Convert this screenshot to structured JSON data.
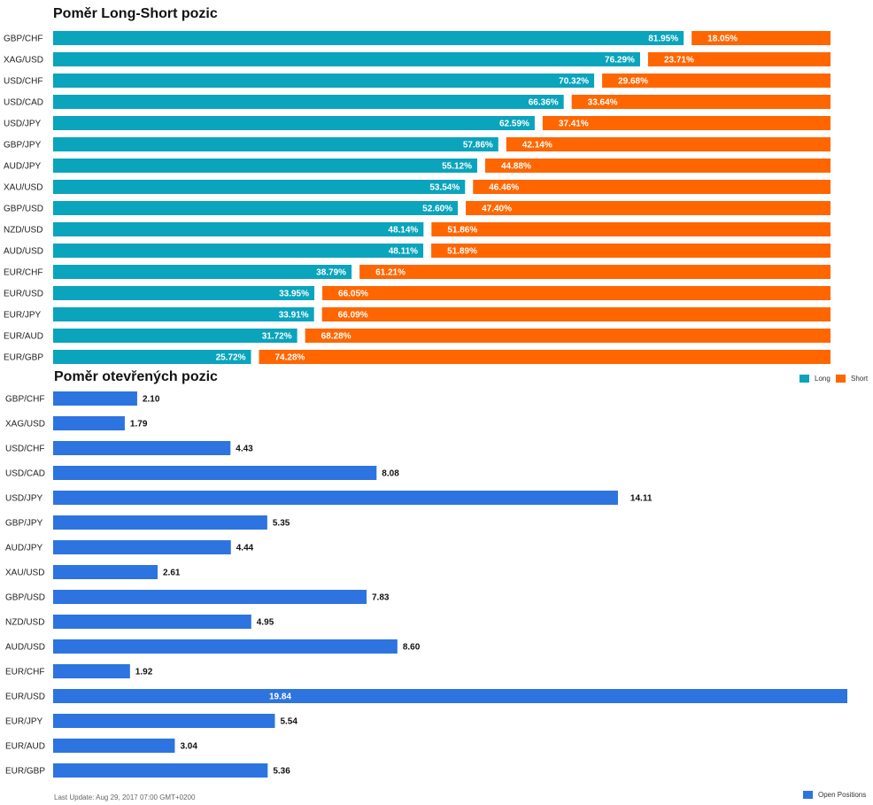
{
  "colors": {
    "long": "#0aa4bc",
    "short": "#ff6600",
    "open": "#2d74e0"
  },
  "legend": {
    "long": "Long",
    "short": "Short",
    "open": "Open Positions"
  },
  "footer": {
    "last_update": "Last Update: Aug 29, 2017 07:00 GMT+0200"
  },
  "chart_data": [
    {
      "type": "bar",
      "orientation": "horizontal",
      "stacked": true,
      "title": "Poměr Long-Short pozic",
      "categories": [
        "GBP/CHF",
        "XAG/USD",
        "USD/CHF",
        "USD/CAD",
        "USD/JPY",
        "GBP/JPY",
        "AUD/JPY",
        "XAU/USD",
        "GBP/USD",
        "NZD/USD",
        "AUD/USD",
        "EUR/CHF",
        "EUR/USD",
        "EUR/JPY",
        "EUR/AUD",
        "EUR/GBP"
      ],
      "series": [
        {
          "name": "Long",
          "values": [
            81.95,
            76.29,
            70.32,
            66.36,
            62.59,
            57.86,
            55.12,
            53.54,
            52.6,
            48.14,
            48.11,
            38.79,
            33.95,
            33.91,
            31.72,
            25.72
          ],
          "labels": [
            "81.95%",
            "76.29%",
            "70.32%",
            "66.36%",
            "62.59%",
            "57.86%",
            "55.12%",
            "53.54%",
            "52.60%",
            "48.14%",
            "48.11%",
            "38.79%",
            "33.95%",
            "33.91%",
            "31.72%",
            "25.72%"
          ]
        },
        {
          "name": "Short",
          "values": [
            18.05,
            23.71,
            29.68,
            33.64,
            37.41,
            42.14,
            44.88,
            46.46,
            47.4,
            51.86,
            51.89,
            61.21,
            66.05,
            66.09,
            68.28,
            74.28
          ],
          "labels": [
            "18.05%",
            "23.71%",
            "29.68%",
            "33.64%",
            "37.41%",
            "42.14%",
            "44.88%",
            "46.46%",
            "47.40%",
            "51.86%",
            "51.89%",
            "61.21%",
            "66.05%",
            "66.09%",
            "68.28%",
            "74.28%"
          ]
        }
      ],
      "xlim": [
        0,
        100
      ],
      "legend_position": "bottom-right"
    },
    {
      "type": "bar",
      "orientation": "horizontal",
      "title": "Poměr otevřených pozic",
      "categories": [
        "GBP/CHF",
        "XAG/USD",
        "USD/CHF",
        "USD/CAD",
        "USD/JPY",
        "GBP/JPY",
        "AUD/JPY",
        "XAU/USD",
        "GBP/USD",
        "NZD/USD",
        "AUD/USD",
        "EUR/CHF",
        "EUR/USD",
        "EUR/JPY",
        "EUR/AUD",
        "EUR/GBP"
      ],
      "series": [
        {
          "name": "Open Positions",
          "values": [
            2.1,
            1.79,
            4.43,
            8.08,
            14.11,
            5.35,
            4.44,
            2.61,
            7.83,
            4.95,
            8.6,
            1.92,
            19.84,
            5.54,
            3.04,
            5.36
          ],
          "labels": [
            "2.10",
            "1.79",
            "4.43",
            "8.08",
            "14.11",
            "5.35",
            "4.44",
            "2.61",
            "7.83",
            "4.95",
            "8.60",
            "1.92",
            "19.84",
            "5.54",
            "3.04",
            "5.36"
          ]
        }
      ],
      "xlim": [
        0,
        19.84
      ],
      "legend_position": "bottom-right"
    }
  ]
}
